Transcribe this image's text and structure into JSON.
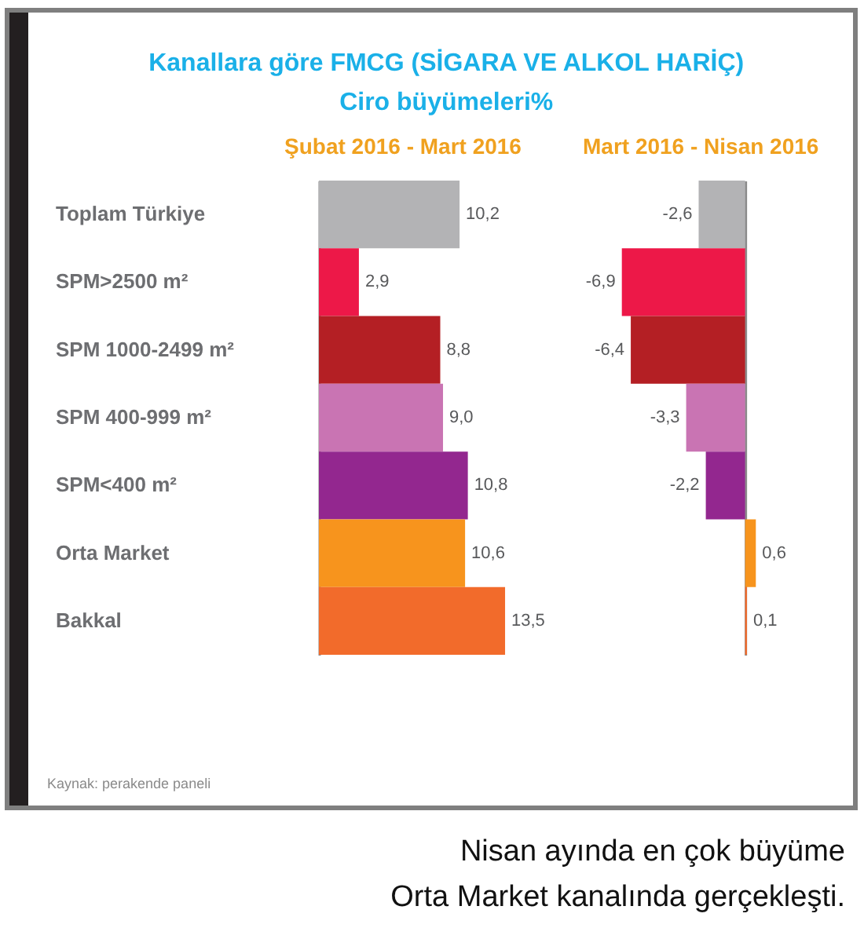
{
  "chart_data": [
    {
      "type": "bar",
      "orientation": "horizontal",
      "title": "Kanallara göre FMCG (SİGARA VE ALKOL HARİÇ)\nCiro büyümeleri%",
      "subtitle": "Şubat 2016 - Mart 2016",
      "categories": [
        "Toplam Türkiye",
        "SPM>2500 m²",
        "SPM 1000-2499 m²",
        "SPM 400-999 m²",
        "SPM<400 m²",
        "Orta Market",
        "Bakkal"
      ],
      "values": [
        10.2,
        2.9,
        8.8,
        9.0,
        10.8,
        10.6,
        13.5
      ],
      "value_labels": [
        "10,2",
        "2,9",
        "8,8",
        "9,0",
        "10,8",
        "10,6",
        "13,5"
      ],
      "colors": [
        "#b3b3b5",
        "#ed1848",
        "#b41f24",
        "#c974b3",
        "#93278f",
        "#f7941d",
        "#f26b2b"
      ],
      "annotations": [
        "Kaynak: perakende paneli"
      ]
    },
    {
      "type": "bar",
      "orientation": "horizontal",
      "subtitle": "Mart 2016 - Nisan 2016",
      "categories": [
        null,
        null,
        null,
        null,
        null,
        null,
        null
      ],
      "values": [
        -2.6,
        -6.9,
        -6.4,
        -3.3,
        -2.2,
        0.6,
        0.1
      ],
      "value_labels": [
        "-2,6",
        "-6,9",
        "-6,4",
        "-3,3",
        "-2,2",
        "0,6",
        "0,1"
      ],
      "colors": [
        "#b3b3b5",
        "#ed1848",
        "#b41f24",
        "#c974b3",
        "#93278f",
        "#f7941d",
        "#f26b2b"
      ],
      "annotations": [
        "Nisan ayında en çok büyüme\nOrta Market kanalında gerçekleşti."
      ]
    }
  ]
}
